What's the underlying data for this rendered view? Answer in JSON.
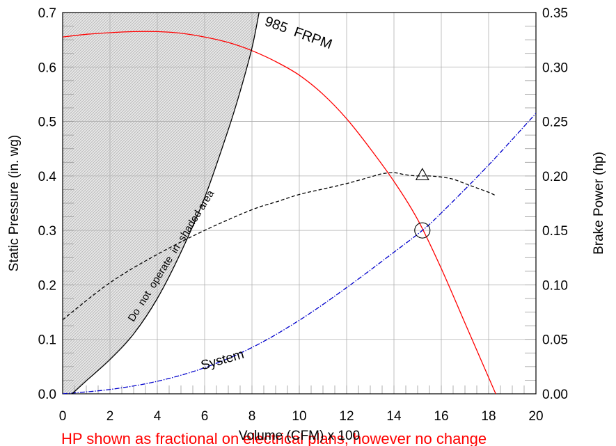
{
  "chart_data": {
    "type": "line",
    "xlabel": "Volume (CFM) x 100",
    "ylabel": "Static Pressure (in. wg)",
    "y2label": "Brake Power (hp)",
    "xlim": [
      0,
      20
    ],
    "ylim": [
      0,
      0.7
    ],
    "y2lim": [
      0,
      0.35
    ],
    "x_ticks": [
      "0",
      "2",
      "4",
      "6",
      "8",
      "10",
      "12",
      "14",
      "16",
      "18",
      "20"
    ],
    "y_ticks": [
      "0.0",
      "0.1",
      "0.2",
      "0.3",
      "0.4",
      "0.5",
      "0.6",
      "0.7"
    ],
    "y2_ticks": [
      "0.00",
      "0.05",
      "0.10",
      "0.15",
      "0.20",
      "0.25",
      "0.30",
      "0.35"
    ],
    "grid": true,
    "series": [
      {
        "name": "985 FRPM",
        "axis": "left",
        "color": "#ff0000",
        "style": "solid",
        "x": [
          0,
          1,
          2,
          3,
          4,
          5,
          6,
          7,
          8,
          9,
          10,
          11,
          12,
          13,
          14,
          15,
          16,
          17,
          17.5,
          18,
          18.3
        ],
        "y": [
          0.655,
          0.66,
          0.663,
          0.665,
          0.665,
          0.662,
          0.655,
          0.645,
          0.63,
          0.61,
          0.585,
          0.55,
          0.505,
          0.45,
          0.39,
          0.32,
          0.23,
          0.13,
          0.08,
          0.03,
          0.0
        ]
      },
      {
        "name": "System",
        "axis": "left",
        "color": "#0000cc",
        "style": "dash-dot",
        "x": [
          0,
          2,
          4,
          6,
          8,
          10,
          12,
          14,
          15.2,
          16,
          18,
          20
        ],
        "y": [
          0,
          0.008,
          0.023,
          0.048,
          0.085,
          0.135,
          0.195,
          0.26,
          0.3,
          0.332,
          0.42,
          0.515
        ]
      },
      {
        "name": "Brake Power",
        "axis": "right",
        "color": "#000000",
        "style": "dashed",
        "x": [
          0,
          2,
          4,
          6,
          8,
          9,
          10,
          11,
          12,
          13,
          13.5,
          14,
          14.5,
          15,
          15.5,
          16,
          16.5,
          17,
          17.5,
          18,
          18.3
        ],
        "y": [
          0.068,
          0.102,
          0.128,
          0.15,
          0.169,
          0.176,
          0.183,
          0.188,
          0.193,
          0.199,
          0.202,
          0.203,
          0.201,
          0.2,
          0.2,
          0.199,
          0.197,
          0.193,
          0.189,
          0.185,
          0.182
        ]
      },
      {
        "name": "",
        "role": "stall-boundary",
        "axis": "left",
        "color": "#000000",
        "style": "solid",
        "x": [
          0.4,
          1,
          2,
          3,
          4,
          5,
          6,
          7,
          7.5,
          8,
          8.3
        ],
        "y": [
          0,
          0.024,
          0.063,
          0.11,
          0.175,
          0.26,
          0.36,
          0.485,
          0.555,
          0.635,
          0.7
        ]
      }
    ],
    "markers": [
      {
        "shape": "circle",
        "axis": "left",
        "x": 15.2,
        "y": 0.3
      },
      {
        "shape": "triangle",
        "axis": "right",
        "x": 15.2,
        "y": 0.2
      }
    ],
    "annotations": [
      {
        "text": "985  FRPM",
        "x": 9.9,
        "y": 0.655,
        "rotate": 20,
        "size": 20
      },
      {
        "text": "System",
        "x": 6.8,
        "y": 0.055,
        "rotate": -16,
        "size": 19
      },
      {
        "text": "Do  not  operate  in  shaded area",
        "x": 4.7,
        "y": 0.25,
        "rotate": -58,
        "size": 15
      }
    ],
    "footer": "HP shown as fractional on electrical plans, however no change"
  }
}
